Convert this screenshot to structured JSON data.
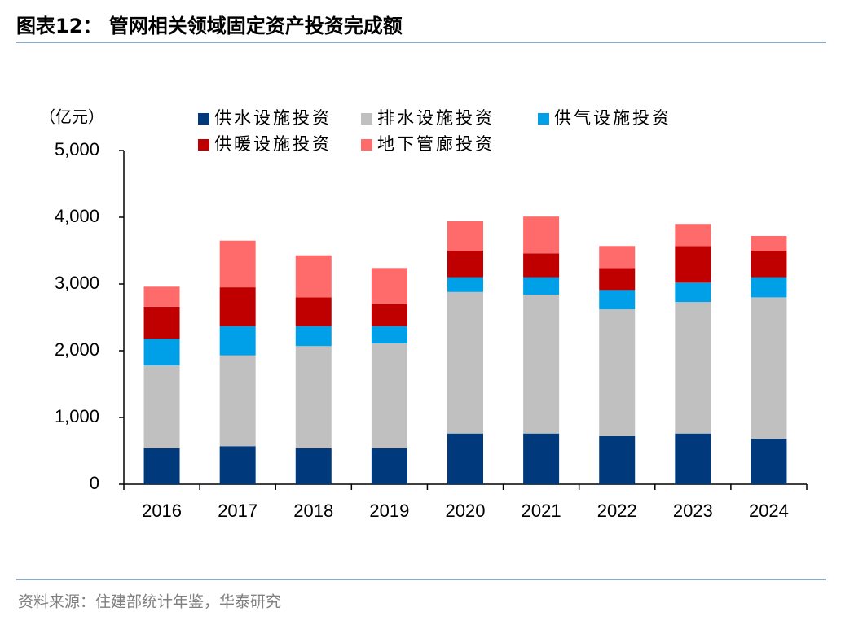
{
  "header": {
    "title": "图表12：  管网相关领域固定资产投资完成额"
  },
  "chart_data": {
    "type": "stacked_bar",
    "y_label": "（亿元）",
    "categories": [
      "2016",
      "2017",
      "2018",
      "2019",
      "2020",
      "2021",
      "2022",
      "2023",
      "2024"
    ],
    "series": [
      {
        "name": "供水设施投资",
        "color": "#003a7d",
        "values": [
          540,
          570,
          540,
          540,
          760,
          760,
          720,
          760,
          680
        ]
      },
      {
        "name": "排水设施投资",
        "color": "#c0c0c0",
        "values": [
          1240,
          1360,
          1530,
          1570,
          2120,
          2080,
          1900,
          1970,
          2120
        ]
      },
      {
        "name": "供气设施投资",
        "color": "#00a0e9",
        "values": [
          400,
          440,
          300,
          260,
          220,
          260,
          290,
          290,
          300
        ]
      },
      {
        "name": "供暖设施投资",
        "color": "#c00000",
        "values": [
          480,
          580,
          430,
          330,
          400,
          360,
          330,
          550,
          400
        ]
      },
      {
        "name": "地下管廊投资",
        "color": "#ff6b6b",
        "values": [
          300,
          700,
          630,
          540,
          440,
          550,
          330,
          330,
          220
        ]
      }
    ],
    "ylim": [
      0,
      5000
    ],
    "yticks": [
      0,
      {
        "value": 1000,
        "label": "1,000"
      },
      {
        "value": 2000,
        "label": "2,000"
      },
      {
        "value": 3000,
        "label": "3,000"
      },
      {
        "value": 4000,
        "label": "4,000"
      },
      {
        "value": 5000,
        "label": "5,000"
      }
    ],
    "grid": false
  },
  "footer": {
    "source": "资料来源：住建部统计年鉴，华泰研究"
  }
}
